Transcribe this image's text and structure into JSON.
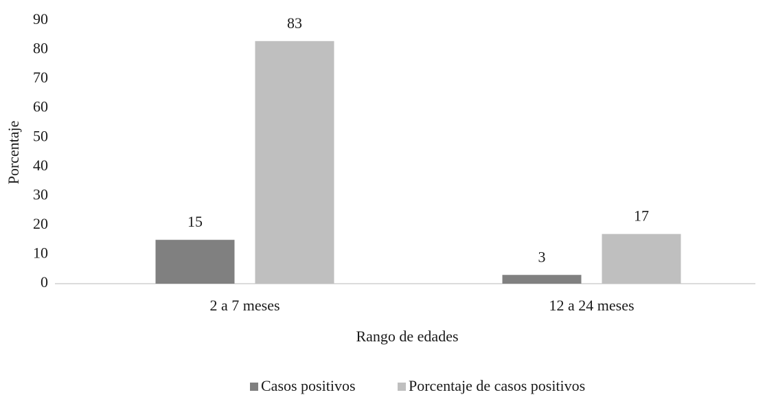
{
  "chart_data": {
    "type": "bar",
    "categories": [
      "2 a 7 meses",
      "12 a 24 meses"
    ],
    "series": [
      {
        "name": "Casos positivos",
        "color": "#808080",
        "values": [
          15,
          3
        ]
      },
      {
        "name": "Porcentaje de casos positivos",
        "color": "#bfbfbf",
        "values": [
          83,
          17
        ]
      }
    ],
    "xlabel": "Rango de edades",
    "ylabel": "Porcentaje",
    "ylim": [
      0,
      90
    ],
    "yticks": [
      0,
      10,
      20,
      30,
      40,
      50,
      60,
      70,
      80,
      90
    ],
    "grid": false,
    "legend": "bottom"
  }
}
